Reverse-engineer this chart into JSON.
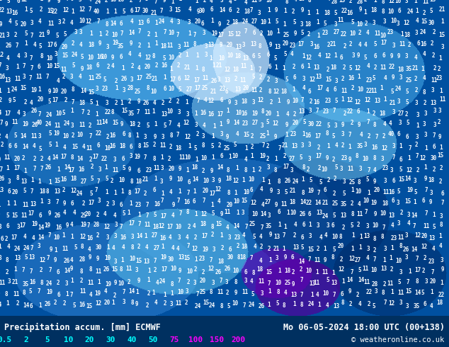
{
  "title_left": "Precipitation accum. [mm] ECMWF",
  "title_right": "Mo 06-05-2024 18:00 UTC (00+138)",
  "copyright": "© weatheronline.co.uk",
  "colorbar_labels": [
    "0.5",
    "2",
    "5",
    "10",
    "20",
    "30",
    "40",
    "50",
    "75",
    "100",
    "150",
    "200"
  ],
  "colorbar_text_colors": [
    "#00ffff",
    "#00ffff",
    "#00ffff",
    "#00ffff",
    "#00ffff",
    "#00ffff",
    "#00ffff",
    "#00ffff",
    "#ff00ff",
    "#ff00ff",
    "#ff00ff",
    "#ff00ff"
  ],
  "bg_color": "#003060",
  "fig_width": 6.34,
  "fig_height": 4.9,
  "dpi": 100
}
